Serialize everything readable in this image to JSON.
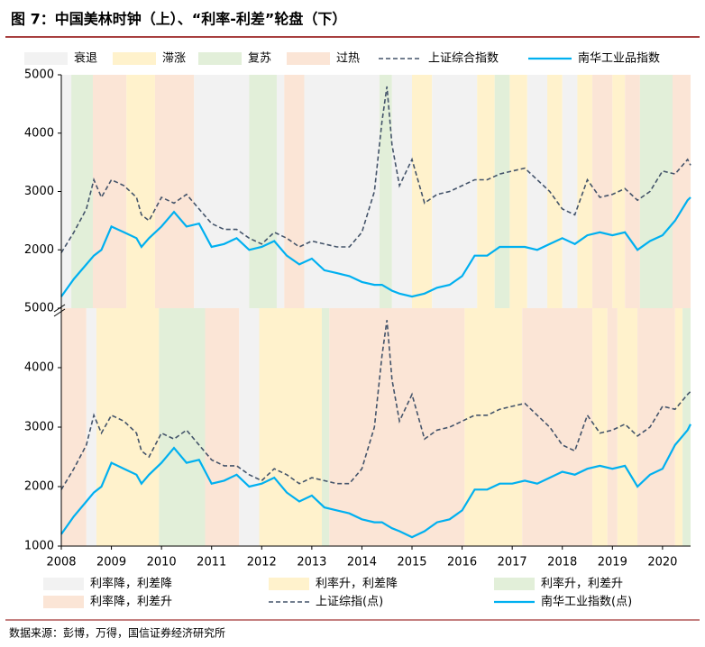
{
  "title": "图 7：中国美林时钟（上）、“利率-利差”轮盘（下）",
  "source": "数据来源：彭博，万得，国信证券经济研究所",
  "chart_data": [
    {
      "type": "line",
      "band_types": [
        {
          "name": "衰退",
          "color": "#f2f2f2"
        },
        {
          "name": "滞涨",
          "color": "#fff2cc"
        },
        {
          "name": "复苏",
          "color": "#e2efd9"
        },
        {
          "name": "过热",
          "color": "#fbe5d6"
        }
      ],
      "bands": [
        [
          2008.0,
          2008.2,
          0
        ],
        [
          2008.2,
          2008.63,
          2
        ],
        [
          2008.63,
          2009.3,
          3
        ],
        [
          2009.3,
          2009.87,
          1
        ],
        [
          2009.87,
          2010.65,
          3
        ],
        [
          2010.65,
          2011.75,
          0
        ],
        [
          2011.75,
          2012.3,
          2
        ],
        [
          2012.3,
          2012.45,
          0
        ],
        [
          2012.45,
          2012.85,
          3
        ],
        [
          2012.85,
          2014.35,
          0
        ],
        [
          2014.35,
          2014.6,
          2
        ],
        [
          2014.6,
          2015.0,
          0
        ],
        [
          2015.0,
          2015.4,
          1
        ],
        [
          2015.4,
          2016.3,
          0
        ],
        [
          2016.3,
          2016.65,
          1
        ],
        [
          2016.65,
          2016.95,
          2
        ],
        [
          2016.95,
          2017.3,
          1
        ],
        [
          2017.3,
          2017.7,
          0
        ],
        [
          2017.7,
          2018.0,
          1
        ],
        [
          2018.0,
          2018.3,
          0
        ],
        [
          2018.3,
          2018.6,
          1
        ],
        [
          2018.6,
          2019.0,
          3
        ],
        [
          2019.0,
          2019.25,
          1
        ],
        [
          2019.25,
          2019.55,
          3
        ],
        [
          2019.55,
          2020.2,
          2
        ],
        [
          2020.2,
          2020.56,
          3
        ]
      ],
      "x": [
        2008.0,
        2008.25,
        2008.5,
        2008.65,
        2008.8,
        2009.0,
        2009.25,
        2009.5,
        2009.6,
        2009.75,
        2010.0,
        2010.25,
        2010.5,
        2010.75,
        2011.0,
        2011.25,
        2011.5,
        2011.75,
        2012.0,
        2012.25,
        2012.5,
        2012.75,
        2013.0,
        2013.25,
        2013.5,
        2013.75,
        2014.0,
        2014.25,
        2014.4,
        2014.5,
        2014.6,
        2014.75,
        2015.0,
        2015.25,
        2015.5,
        2015.75,
        2016.0,
        2016.25,
        2016.5,
        2016.75,
        2017.0,
        2017.25,
        2017.5,
        2017.75,
        2018.0,
        2018.25,
        2018.5,
        2018.75,
        2019.0,
        2019.25,
        2019.5,
        2019.75,
        2020.0,
        2020.25,
        2020.5,
        2020.56
      ],
      "series": [
        {
          "name": "上证综合指数",
          "color": "#44546a",
          "dash": true,
          "values": [
            1950,
            2300,
            2700,
            3200,
            2900,
            3200,
            3100,
            2900,
            2600,
            2500,
            2900,
            2800,
            2950,
            2700,
            2450,
            2350,
            2350,
            2200,
            2100,
            2300,
            2200,
            2050,
            2150,
            2100,
            2050,
            2050,
            2300,
            3000,
            4200,
            4800,
            3800,
            3100,
            3550,
            2800,
            2950,
            3000,
            3100,
            3200,
            3200,
            3300,
            3350,
            3400,
            3200,
            3000,
            2700,
            2600,
            3200,
            2900,
            2950,
            3050,
            2850,
            3000,
            3350,
            3300,
            3550,
            3450
          ]
        },
        {
          "name": "南华工业品指数",
          "color": "#00b0f0",
          "dash": false,
          "values": [
            1200,
            1500,
            1750,
            1900,
            2000,
            2400,
            2300,
            2200,
            2050,
            2200,
            2400,
            2650,
            2400,
            2450,
            2050,
            2100,
            2200,
            2000,
            2050,
            2150,
            1900,
            1750,
            1850,
            1650,
            1600,
            1550,
            1450,
            1400,
            1400,
            1350,
            1300,
            1250,
            1200,
            1250,
            1350,
            1400,
            1550,
            1900,
            1900,
            2050,
            2050,
            2050,
            2000,
            2100,
            2200,
            2100,
            2250,
            2300,
            2250,
            2300,
            2000,
            2150,
            2250,
            2500,
            2850,
            2900
          ]
        }
      ],
      "xlim": [
        2008.0,
        2020.56
      ],
      "ylim": [
        1000,
        5000
      ],
      "yticks": [
        2000,
        3000,
        4000,
        5000
      ]
    },
    {
      "type": "line",
      "band_types": [
        {
          "name": "利率降，利差降",
          "color": "#f2f2f2"
        },
        {
          "name": "利率升，利差降",
          "color": "#fff2cc"
        },
        {
          "name": "利率升，利差升",
          "color": "#e2efd9"
        },
        {
          "name": "利率降，利差升",
          "color": "#fbe5d6"
        }
      ],
      "bands": [
        [
          2008.0,
          2008.5,
          3
        ],
        [
          2008.5,
          2008.7,
          0
        ],
        [
          2008.7,
          2009.95,
          1
        ],
        [
          2009.95,
          2010.87,
          2
        ],
        [
          2010.87,
          2011.55,
          3
        ],
        [
          2011.55,
          2011.95,
          0
        ],
        [
          2011.95,
          2013.2,
          1
        ],
        [
          2013.2,
          2013.35,
          2
        ],
        [
          2013.35,
          2016.05,
          3
        ],
        [
          2016.05,
          2017.2,
          1
        ],
        [
          2017.2,
          2018.6,
          3
        ],
        [
          2018.6,
          2018.9,
          1
        ],
        [
          2018.9,
          2019.1,
          3
        ],
        [
          2019.1,
          2019.5,
          1
        ],
        [
          2019.5,
          2020.25,
          3
        ],
        [
          2020.25,
          2020.4,
          1
        ],
        [
          2020.4,
          2020.56,
          2
        ]
      ],
      "x": [
        2008.0,
        2008.25,
        2008.5,
        2008.65,
        2008.8,
        2009.0,
        2009.25,
        2009.5,
        2009.6,
        2009.75,
        2010.0,
        2010.25,
        2010.5,
        2010.75,
        2011.0,
        2011.25,
        2011.5,
        2011.75,
        2012.0,
        2012.25,
        2012.5,
        2012.75,
        2013.0,
        2013.25,
        2013.5,
        2013.75,
        2014.0,
        2014.25,
        2014.4,
        2014.5,
        2014.6,
        2014.75,
        2015.0,
        2015.25,
        2015.5,
        2015.75,
        2016.0,
        2016.25,
        2016.5,
        2016.75,
        2017.0,
        2017.25,
        2017.5,
        2017.75,
        2018.0,
        2018.25,
        2018.5,
        2018.75,
        2019.0,
        2019.25,
        2019.5,
        2019.75,
        2020.0,
        2020.25,
        2020.5,
        2020.56
      ],
      "series": [
        {
          "name": "上证综指(点)",
          "color": "#44546a",
          "dash": true,
          "values": [
            1950,
            2300,
            2700,
            3200,
            2900,
            3200,
            3100,
            2900,
            2600,
            2500,
            2900,
            2800,
            2950,
            2700,
            2450,
            2350,
            2350,
            2200,
            2100,
            2300,
            2200,
            2050,
            2150,
            2100,
            2050,
            2050,
            2300,
            3000,
            4200,
            4800,
            3800,
            3100,
            3550,
            2800,
            2950,
            3000,
            3100,
            3200,
            3200,
            3300,
            3350,
            3400,
            3200,
            3000,
            2700,
            2600,
            3200,
            2900,
            2950,
            3050,
            2850,
            3000,
            3350,
            3300,
            3550,
            3600
          ]
        },
        {
          "name": "南华工业指数(点)",
          "color": "#00b0f0",
          "dash": false,
          "values": [
            1200,
            1500,
            1750,
            1900,
            2000,
            2400,
            2300,
            2200,
            2050,
            2200,
            2400,
            2650,
            2400,
            2450,
            2050,
            2100,
            2200,
            2000,
            2050,
            2150,
            1900,
            1750,
            1850,
            1650,
            1600,
            1550,
            1450,
            1400,
            1400,
            1350,
            1300,
            1250,
            1150,
            1250,
            1400,
            1450,
            1600,
            1950,
            1950,
            2050,
            2050,
            2100,
            2050,
            2150,
            2250,
            2200,
            2300,
            2350,
            2300,
            2350,
            2000,
            2200,
            2300,
            2700,
            2950,
            3050
          ]
        }
      ],
      "xlim": [
        2008.0,
        2020.56
      ],
      "ylim": [
        1000,
        5000
      ],
      "yticks": [
        1000,
        2000,
        3000,
        4000,
        5000
      ],
      "xticks": [
        2008,
        2009,
        2010,
        2011,
        2012,
        2013,
        2014,
        2015,
        2016,
        2017,
        2018,
        2019,
        2020
      ]
    }
  ]
}
